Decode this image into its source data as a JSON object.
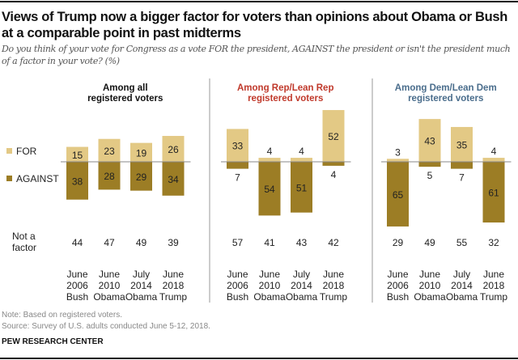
{
  "title": "Views of Trump now a bigger factor for voters than opinions about Obama or Bush at a comparable point in past midterms",
  "subtitle": "Do you think of your vote for Congress as a vote FOR the president, AGAINST the president or isn't the president much of a factor in your vote? (%)",
  "legend": {
    "for": "FOR",
    "against": "AGAINST",
    "not_a_factor_line1": "Not a",
    "not_a_factor_line2": "factor"
  },
  "colors": {
    "for": "#e3c985",
    "against": "#9c7d25",
    "rep_header": "#c0392b",
    "dem_header": "#4a6d8c"
  },
  "note": "Note: Based on registered voters.",
  "source": "Source: Survey of U.S. adults conducted June 5-12, 2018.",
  "brand": "PEW RESEARCH CENTER",
  "chart_data": {
    "type": "bar",
    "categories": [
      [
        "June",
        "2006",
        "Bush"
      ],
      [
        "June",
        "2010",
        "Obama"
      ],
      [
        "July",
        "2014",
        "Obama"
      ],
      [
        "June",
        "2018",
        "Trump"
      ]
    ],
    "panels": [
      {
        "title_line1": "Among all",
        "title_line2": "registered voters",
        "for": [
          15,
          23,
          19,
          26
        ],
        "against": [
          38,
          28,
          29,
          34
        ],
        "not_a_factor": [
          44,
          47,
          49,
          39
        ]
      },
      {
        "title_line1": "Among Rep/Lean Rep",
        "title_line2": "registered voters",
        "for": [
          33,
          4,
          4,
          52
        ],
        "against": [
          7,
          54,
          51,
          4
        ],
        "not_a_factor": [
          57,
          41,
          43,
          42
        ]
      },
      {
        "title_line1": "Among Dem/Lean Dem",
        "title_line2": "registered voters",
        "for": [
          3,
          43,
          35,
          4
        ],
        "against": [
          65,
          5,
          7,
          61
        ],
        "not_a_factor": [
          29,
          49,
          55,
          32
        ]
      }
    ]
  }
}
